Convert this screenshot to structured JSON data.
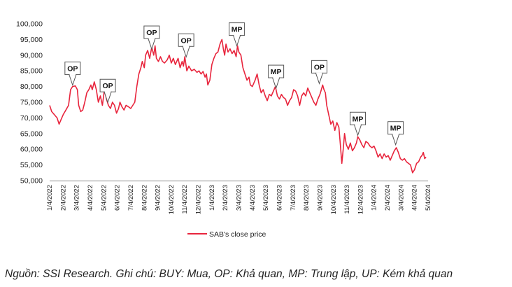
{
  "chart_data": {
    "type": "line",
    "title": "",
    "xlabel": "",
    "ylabel": "",
    "ylim": [
      50000,
      100000
    ],
    "y_ticks": [
      "100,000",
      "95,000",
      "90,000",
      "85,000",
      "80,000",
      "75,000",
      "70,000",
      "65,000",
      "60,000",
      "55,000",
      "50,000"
    ],
    "x_ticks": [
      "1/4/2022",
      "2/4/2022",
      "3/4/2022",
      "4/4/2022",
      "5/4/2022",
      "6/4/2022",
      "7/4/2022",
      "8/4/2022",
      "9/4/2022",
      "10/4/2022",
      "11/4/2022",
      "12/4/2022",
      "1/4/2023",
      "2/4/2023",
      "3/4/2023",
      "4/4/2023",
      "5/4/2023",
      "6/4/2023",
      "7/4/2023",
      "8/4/2023",
      "9/4/2023",
      "10/4/2023",
      "11/4/2023",
      "12/4/2023",
      "1/4/2024",
      "2/4/2024",
      "3/4/2024",
      "4/4/2024",
      "5/4/2024"
    ],
    "series": [
      {
        "name": "SAB's close price",
        "color": "#e8253d",
        "points": [
          [
            0,
            74000
          ],
          [
            0.15,
            72000
          ],
          [
            0.35,
            71000
          ],
          [
            0.55,
            70000
          ],
          [
            0.7,
            68000
          ],
          [
            0.85,
            69500
          ],
          [
            1.0,
            71000
          ],
          [
            1.2,
            72500
          ],
          [
            1.4,
            74000
          ],
          [
            1.55,
            79000
          ],
          [
            1.7,
            80000
          ],
          [
            1.9,
            80200
          ],
          [
            2.05,
            79000
          ],
          [
            2.15,
            74000
          ],
          [
            2.3,
            72000
          ],
          [
            2.45,
            72500
          ],
          [
            2.6,
            75000
          ],
          [
            2.75,
            78000
          ],
          [
            2.9,
            79000
          ],
          [
            3.05,
            80500
          ],
          [
            3.15,
            79000
          ],
          [
            3.3,
            81500
          ],
          [
            3.45,
            79000
          ],
          [
            3.6,
            75000
          ],
          [
            3.75,
            77000
          ],
          [
            3.9,
            74000
          ],
          [
            4.05,
            79000
          ],
          [
            4.2,
            76000
          ],
          [
            4.35,
            74000
          ],
          [
            4.5,
            73000
          ],
          [
            4.65,
            75000
          ],
          [
            4.8,
            74000
          ],
          [
            4.95,
            71500
          ],
          [
            5.1,
            73000
          ],
          [
            5.2,
            75000
          ],
          [
            5.35,
            73500
          ],
          [
            5.5,
            72500
          ],
          [
            5.65,
            74000
          ],
          [
            5.85,
            73500
          ],
          [
            6.0,
            73000
          ],
          [
            6.15,
            74000
          ],
          [
            6.3,
            75000
          ],
          [
            6.45,
            80000
          ],
          [
            6.6,
            84000
          ],
          [
            6.75,
            86000
          ],
          [
            6.85,
            88000
          ],
          [
            7.0,
            86000
          ],
          [
            7.1,
            90000
          ],
          [
            7.25,
            91500
          ],
          [
            7.4,
            89000
          ],
          [
            7.55,
            92500
          ],
          [
            7.7,
            90000
          ],
          [
            7.8,
            93000
          ],
          [
            7.9,
            89000
          ],
          [
            8.05,
            88000
          ],
          [
            8.2,
            89500
          ],
          [
            8.35,
            88000
          ],
          [
            8.5,
            87500
          ],
          [
            8.7,
            88500
          ],
          [
            8.85,
            90000
          ],
          [
            9.0,
            87500
          ],
          [
            9.15,
            89000
          ],
          [
            9.3,
            87000
          ],
          [
            9.5,
            89000
          ],
          [
            9.65,
            86000
          ],
          [
            9.8,
            88000
          ],
          [
            9.9,
            86500
          ],
          [
            10.0,
            89500
          ],
          [
            10.15,
            85000
          ],
          [
            10.3,
            86500
          ],
          [
            10.5,
            85000
          ],
          [
            10.7,
            85500
          ],
          [
            10.9,
            84500
          ],
          [
            11.05,
            85000
          ],
          [
            11.2,
            84000
          ],
          [
            11.35,
            84800
          ],
          [
            11.5,
            83000
          ],
          [
            11.6,
            84000
          ],
          [
            11.7,
            80500
          ],
          [
            11.85,
            82000
          ],
          [
            12.0,
            87000
          ],
          [
            12.15,
            89000
          ],
          [
            12.3,
            90500
          ],
          [
            12.45,
            91000
          ],
          [
            12.6,
            93500
          ],
          [
            12.75,
            95000
          ],
          [
            12.85,
            92000
          ],
          [
            12.95,
            90000
          ],
          [
            13.05,
            93500
          ],
          [
            13.2,
            91000
          ],
          [
            13.35,
            92000
          ],
          [
            13.5,
            90500
          ],
          [
            13.65,
            91500
          ],
          [
            13.8,
            89500
          ],
          [
            13.9,
            93000
          ],
          [
            14.0,
            91000
          ],
          [
            14.15,
            90000
          ],
          [
            14.3,
            86000
          ],
          [
            14.45,
            84000
          ],
          [
            14.6,
            82000
          ],
          [
            14.75,
            83000
          ],
          [
            14.85,
            80500
          ],
          [
            15.0,
            80000
          ],
          [
            15.2,
            82000
          ],
          [
            15.35,
            84000
          ],
          [
            15.5,
            80500
          ],
          [
            15.65,
            78000
          ],
          [
            15.8,
            79000
          ],
          [
            15.95,
            77000
          ],
          [
            16.1,
            75500
          ],
          [
            16.25,
            77500
          ],
          [
            16.4,
            77000
          ],
          [
            16.55,
            78500
          ],
          [
            16.7,
            80000
          ],
          [
            16.85,
            77000
          ],
          [
            17.0,
            76000
          ],
          [
            17.15,
            77500
          ],
          [
            17.3,
            76500
          ],
          [
            17.45,
            76000
          ],
          [
            17.6,
            74000
          ],
          [
            17.75,
            75500
          ],
          [
            17.9,
            76500
          ],
          [
            18.05,
            79000
          ],
          [
            18.2,
            78500
          ],
          [
            18.35,
            77000
          ],
          [
            18.5,
            74000
          ],
          [
            18.65,
            77000
          ],
          [
            18.8,
            78000
          ],
          [
            18.95,
            77000
          ],
          [
            19.1,
            79500
          ],
          [
            19.25,
            78000
          ],
          [
            19.4,
            76500
          ],
          [
            19.55,
            75000
          ],
          [
            19.7,
            74000
          ],
          [
            19.85,
            76000
          ],
          [
            20.0,
            77500
          ],
          [
            20.1,
            79000
          ],
          [
            20.2,
            80500
          ],
          [
            20.3,
            79000
          ],
          [
            20.4,
            78000
          ],
          [
            20.5,
            74000
          ],
          [
            20.65,
            71000
          ],
          [
            20.8,
            68000
          ],
          [
            20.95,
            69000
          ],
          [
            21.1,
            66000
          ],
          [
            21.25,
            68500
          ],
          [
            21.4,
            67000
          ],
          [
            21.5,
            62000
          ],
          [
            21.62,
            55500
          ],
          [
            21.72,
            60000
          ],
          [
            21.82,
            65000
          ],
          [
            21.95,
            61500
          ],
          [
            22.1,
            60000
          ],
          [
            22.25,
            62000
          ],
          [
            22.4,
            59500
          ],
          [
            22.55,
            60500
          ],
          [
            22.7,
            62000
          ],
          [
            22.8,
            64000
          ],
          [
            22.95,
            63000
          ],
          [
            23.1,
            61500
          ],
          [
            23.25,
            60500
          ],
          [
            23.4,
            62500
          ],
          [
            23.55,
            62000
          ],
          [
            23.7,
            61000
          ],
          [
            23.85,
            60500
          ],
          [
            24.0,
            61000
          ],
          [
            24.15,
            59500
          ],
          [
            24.3,
            57500
          ],
          [
            24.45,
            58500
          ],
          [
            24.6,
            57000
          ],
          [
            24.75,
            58500
          ],
          [
            24.9,
            57500
          ],
          [
            25.05,
            58000
          ],
          [
            25.2,
            56500
          ],
          [
            25.35,
            58000
          ],
          [
            25.5,
            59500
          ],
          [
            25.65,
            60500
          ],
          [
            25.8,
            59000
          ],
          [
            25.95,
            57000
          ],
          [
            26.1,
            56500
          ],
          [
            26.25,
            57000
          ],
          [
            26.4,
            56000
          ],
          [
            26.55,
            55500
          ],
          [
            26.7,
            55000
          ],
          [
            26.85,
            52500
          ],
          [
            27.0,
            53500
          ],
          [
            27.15,
            55500
          ],
          [
            27.3,
            56000
          ],
          [
            27.45,
            57500
          ],
          [
            27.55,
            58000
          ],
          [
            27.65,
            59000
          ],
          [
            27.75,
            57000
          ],
          [
            27.85,
            57500
          ]
        ]
      }
    ],
    "annotations": [
      {
        "text": "OP",
        "x": 1.7,
        "y": 80000
      },
      {
        "text": "OP",
        "x": 4.3,
        "y": 74500
      },
      {
        "text": "OP",
        "x": 7.55,
        "y": 91500
      },
      {
        "text": "OP",
        "x": 10.1,
        "y": 89000
      },
      {
        "text": "MP",
        "x": 13.85,
        "y": 92500
      },
      {
        "text": "MP",
        "x": 16.75,
        "y": 79000
      },
      {
        "text": "OP",
        "x": 19.95,
        "y": 80500
      },
      {
        "text": "MP",
        "x": 22.8,
        "y": 64000
      },
      {
        "text": "MP",
        "x": 25.6,
        "y": 61000
      }
    ],
    "legend": {
      "label": "SAB's close price",
      "position": "bottom-center"
    }
  },
  "footer": {
    "note": "Nguồn: SSI Research. Ghi chú: BUY: Mua, OP: Khả quan, MP: Trung lập, UP: Kém khả quan"
  }
}
